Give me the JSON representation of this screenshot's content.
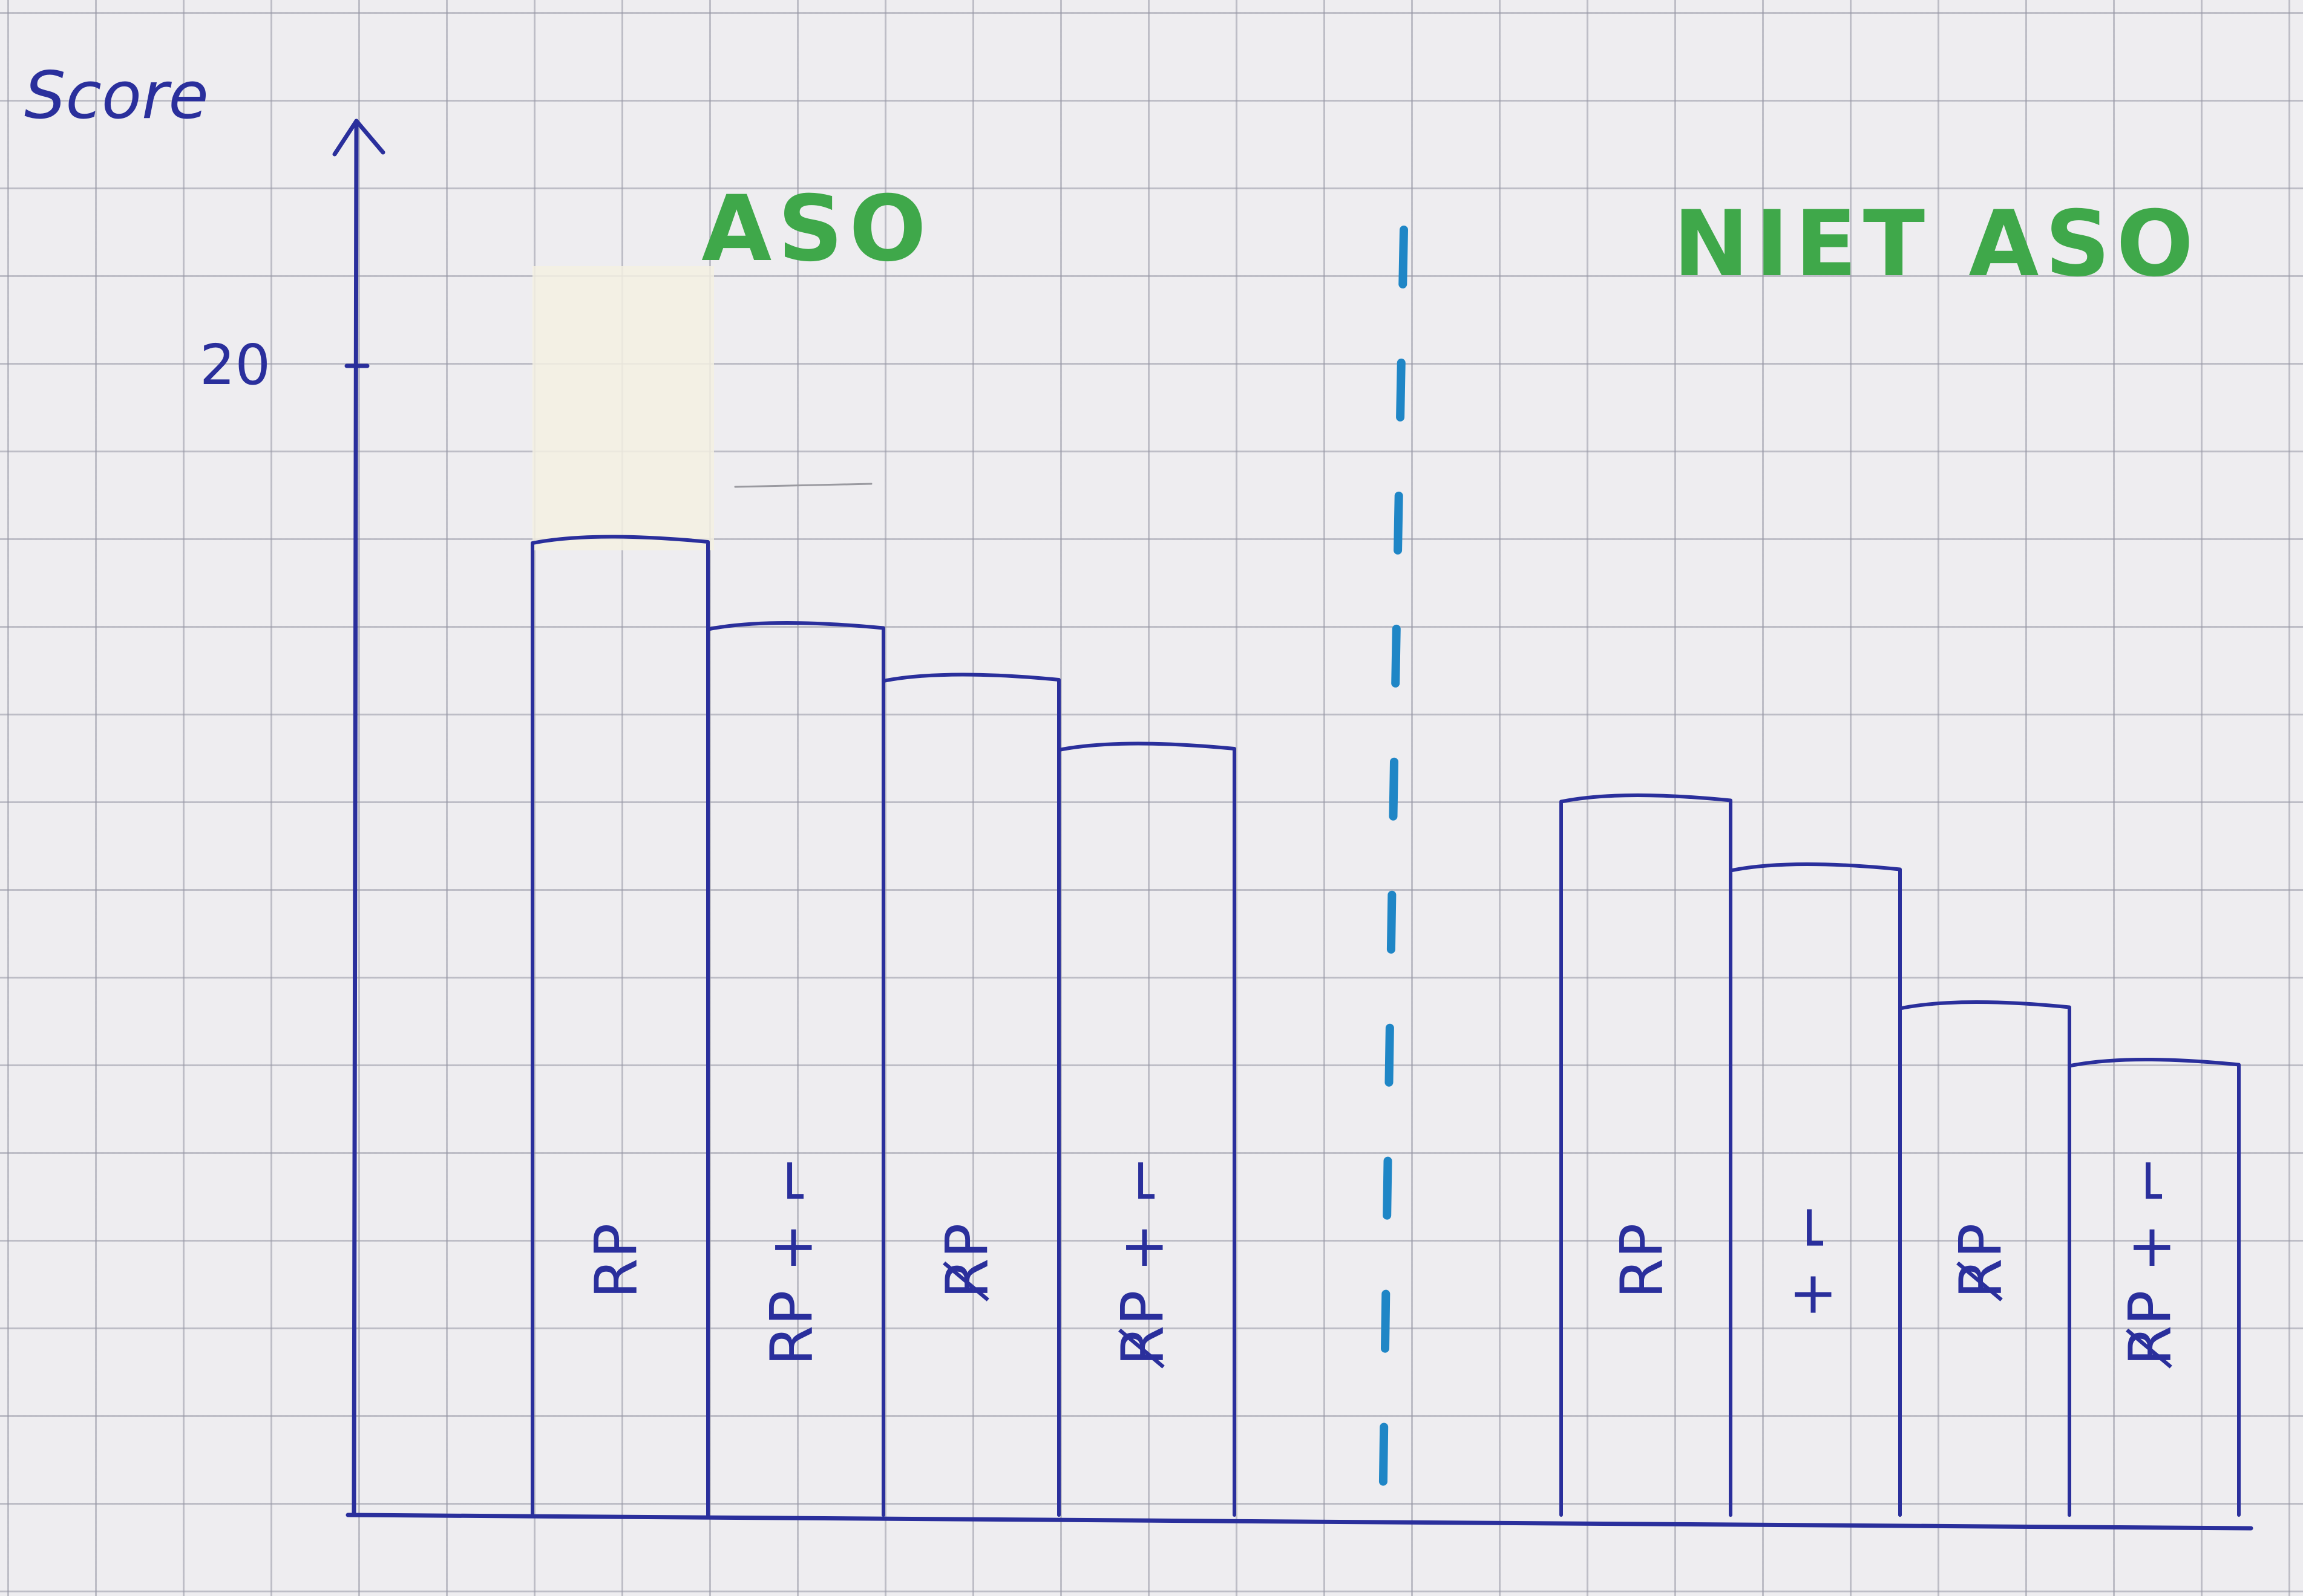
{
  "chart_data": {
    "type": "bar",
    "ylabel": "Score",
    "y_ticks": [
      {
        "value": 20,
        "label": "20"
      }
    ],
    "ylim": [
      0,
      25
    ],
    "grid": true,
    "groups": [
      {
        "title": "ASO",
        "bars": [
          {
            "label": "RP",
            "value": 17
          },
          {
            "label": "RP + ⌐",
            "value": 15.5
          },
          {
            "label": "R̸P",
            "value": 14.6
          },
          {
            "label": "R̸P + ⌐",
            "value": 13.4
          }
        ]
      },
      {
        "title": "NIET ASO",
        "bars": [
          {
            "label": "RP",
            "value": 12.5
          },
          {
            "label": "+ ⌐",
            "value": 11.3
          },
          {
            "label": "R̸P",
            "value": 8.9
          },
          {
            "label": "R̸P + ⌐",
            "value": 7.9
          }
        ]
      }
    ],
    "colors": {
      "ink": "#2a2f9c",
      "title": "#3fa84a",
      "divider": "#1f86c6"
    }
  }
}
